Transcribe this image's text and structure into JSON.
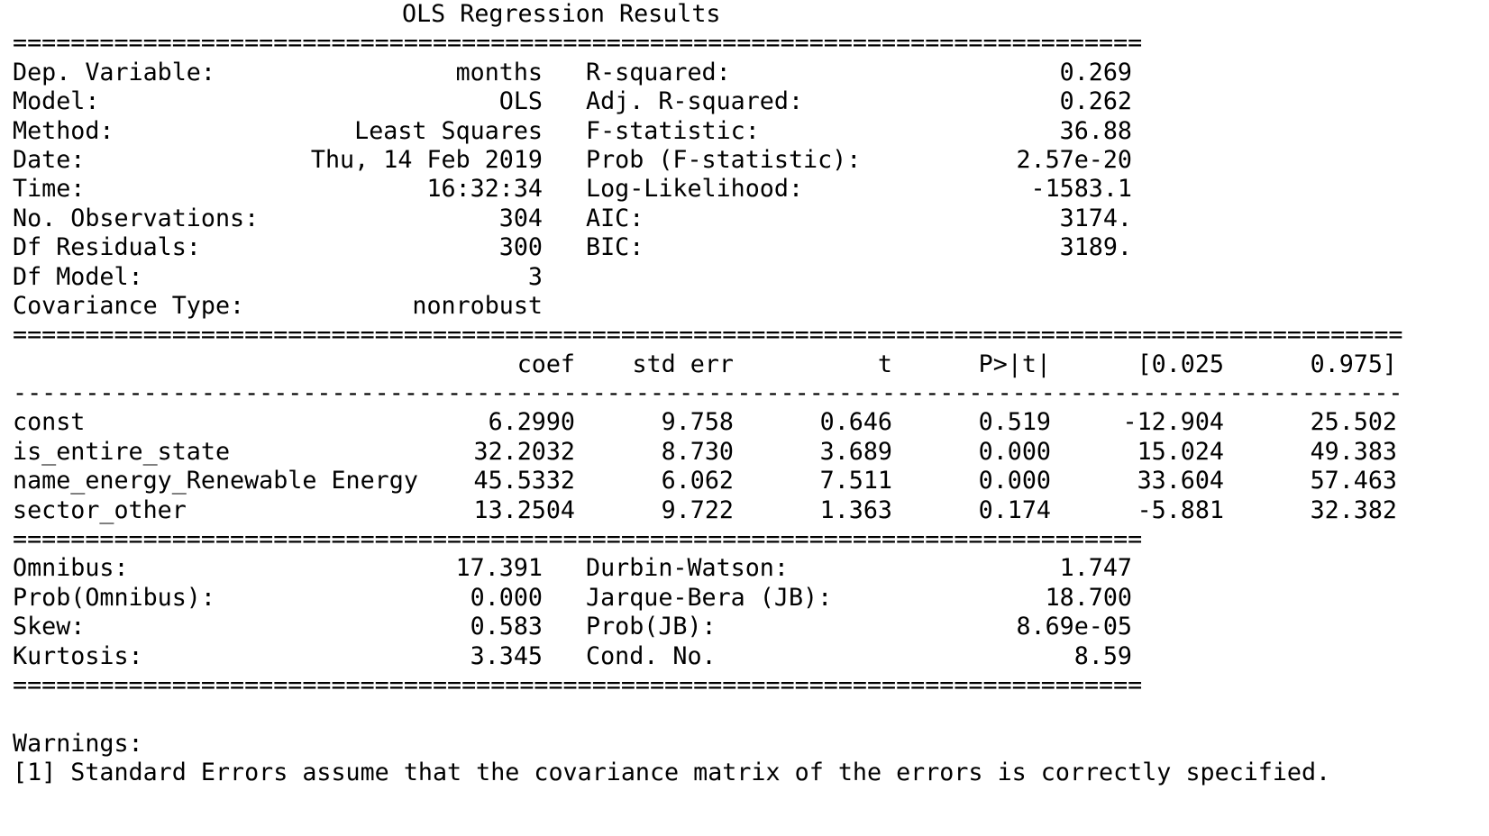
{
  "title": "OLS Regression Results",
  "rule_double": "=",
  "rule_single": "-",
  "header_left": [
    {
      "label": "Dep. Variable:",
      "value": "months"
    },
    {
      "label": "Model:",
      "value": "OLS"
    },
    {
      "label": "Method:",
      "value": "Least Squares"
    },
    {
      "label": "Date:",
      "value": "Thu, 14 Feb 2019"
    },
    {
      "label": "Time:",
      "value": "16:32:34"
    },
    {
      "label": "No. Observations:",
      "value": "304"
    },
    {
      "label": "Df Residuals:",
      "value": "300"
    },
    {
      "label": "Df Model:",
      "value": "3"
    },
    {
      "label": "Covariance Type:",
      "value": "nonrobust"
    }
  ],
  "header_right": [
    {
      "label": "R-squared:",
      "value": "0.269"
    },
    {
      "label": "Adj. R-squared:",
      "value": "0.262"
    },
    {
      "label": "F-statistic:",
      "value": "36.88"
    },
    {
      "label": "Prob (F-statistic):",
      "value": "2.57e-20"
    },
    {
      "label": "Log-Likelihood:",
      "value": "-1583.1"
    },
    {
      "label": "AIC:",
      "value": "3174."
    },
    {
      "label": "BIC:",
      "value": "3189."
    }
  ],
  "coef_table": {
    "columns": [
      "coef",
      "std err",
      "t",
      "P>|t|",
      "[0.025",
      "0.975]"
    ],
    "rows": [
      {
        "name": "const",
        "values": [
          "6.2990",
          "9.758",
          "0.646",
          "0.519",
          "-12.904",
          "25.502"
        ]
      },
      {
        "name": "is_entire_state",
        "values": [
          "32.2032",
          "8.730",
          "3.689",
          "0.000",
          "15.024",
          "49.383"
        ]
      },
      {
        "name": "name_energy_Renewable Energy",
        "values": [
          "45.5332",
          "6.062",
          "7.511",
          "0.000",
          "33.604",
          "57.463"
        ]
      },
      {
        "name": "sector_other",
        "values": [
          "13.2504",
          "9.722",
          "1.363",
          "0.174",
          "-5.881",
          "32.382"
        ]
      }
    ]
  },
  "diag_left": [
    {
      "label": "Omnibus:",
      "value": "17.391"
    },
    {
      "label": "Prob(Omnibus):",
      "value": "0.000"
    },
    {
      "label": "Skew:",
      "value": "0.583"
    },
    {
      "label": "Kurtosis:",
      "value": "3.345"
    }
  ],
  "diag_right": [
    {
      "label": "Durbin-Watson:",
      "value": "1.747"
    },
    {
      "label": "Jarque-Bera (JB):",
      "value": "18.700"
    },
    {
      "label": "Prob(JB):",
      "value": "8.69e-05"
    },
    {
      "label": "Cond. No.",
      "value": "8.59"
    }
  ],
  "warnings": {
    "heading": "Warnings:",
    "items": [
      "[1] Standard Errors assume that the covariance matrix of the errors is correctly specified."
    ]
  }
}
